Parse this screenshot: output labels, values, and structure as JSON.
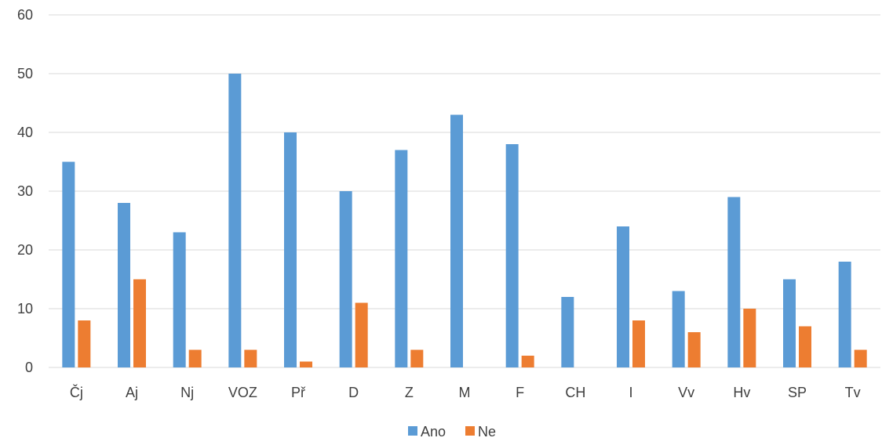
{
  "chart_data": {
    "type": "bar",
    "categories": [
      "Čj",
      "Aj",
      "Nj",
      "VOZ",
      "Př",
      "D",
      "Z",
      "M",
      "F",
      "CH",
      "I",
      "Vv",
      "Hv",
      "SP",
      "Tv"
    ],
    "series": [
      {
        "name": "Ano",
        "color": "#5b9bd5",
        "values": [
          35,
          28,
          23,
          50,
          40,
          30,
          37,
          43,
          38,
          12,
          24,
          13,
          29,
          15,
          18
        ]
      },
      {
        "name": "Ne",
        "color": "#ed7d31",
        "values": [
          8,
          15,
          3,
          3,
          1,
          11,
          3,
          0,
          2,
          0,
          8,
          6,
          10,
          7,
          3
        ]
      }
    ],
    "y_ticks": [
      "0",
      "10",
      "20",
      "30",
      "40",
      "50",
      "60"
    ],
    "ylim": [
      0,
      60
    ],
    "grid": true,
    "legend_position": "bottom"
  }
}
